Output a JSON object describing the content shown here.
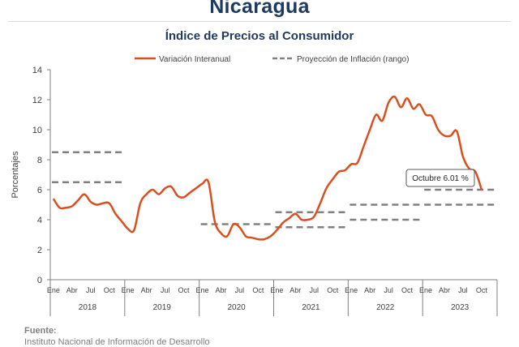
{
  "page": {
    "title": "Nicaragua",
    "subtitle": "Índice de Precios al Consumidor"
  },
  "source": {
    "label": "Fuente:",
    "detail": "Instituto Nacional de Información de Desarrollo"
  },
  "chart_data": {
    "type": "line",
    "title": "Índice de Precios al Consumidor",
    "ylabel": "Porcentajes",
    "xlabel": "",
    "ylim": [
      0,
      14
    ],
    "yticks": [
      0,
      2,
      4,
      6,
      8,
      10,
      12,
      14
    ],
    "month_tick_labels": [
      "Ene",
      "Abr",
      "Jul",
      "Oct"
    ],
    "years": [
      "2018",
      "2019",
      "2020",
      "2021",
      "2022",
      "2023"
    ],
    "grid": false,
    "legend_position": "top",
    "colors": {
      "series": "#d9501e",
      "projection": "#808080",
      "axis": "#808080",
      "text": "#404040"
    },
    "series": [
      {
        "name": "Variación Interanual",
        "style": "solid",
        "x_start": "2018-01",
        "values": [
          5.4,
          4.8,
          4.8,
          4.9,
          5.3,
          5.7,
          5.2,
          5.0,
          5.1,
          5.1,
          4.4,
          3.9,
          3.4,
          3.3,
          5.1,
          5.7,
          6.0,
          5.7,
          6.1,
          6.2,
          5.6,
          5.5,
          5.8,
          6.1,
          6.4,
          6.5,
          3.9,
          3.1,
          2.9,
          3.7,
          3.5,
          2.9,
          2.8,
          2.7,
          2.7,
          2.9,
          3.3,
          3.8,
          4.1,
          4.4,
          4.0,
          4.0,
          4.2,
          5.1,
          6.1,
          6.7,
          7.2,
          7.3,
          7.7,
          7.8,
          8.9,
          10.0,
          11.0,
          10.6,
          11.8,
          12.2,
          11.5,
          12.1,
          11.4,
          11.7,
          11.0,
          10.9,
          10.0,
          9.6,
          9.6,
          9.9,
          8.2,
          7.4,
          7.2,
          6.0
        ]
      }
    ],
    "projection": {
      "name": "Proyección de Inflación (rango)",
      "style": "dashed",
      "ranges": [
        {
          "year": "2018",
          "low": 6.5,
          "high": 8.5
        },
        {
          "year": "2020",
          "low": 3.7,
          "high": 3.7
        },
        {
          "year": "2021",
          "low": 3.5,
          "high": 4.5
        },
        {
          "year": "2022",
          "low": 4.0,
          "high": 5.0
        },
        {
          "year": "2023",
          "low": 5.0,
          "high": 6.0
        }
      ]
    },
    "annotation": {
      "text": "Octubre 6.01 %",
      "value": 6.01,
      "point": "2023-10"
    }
  }
}
